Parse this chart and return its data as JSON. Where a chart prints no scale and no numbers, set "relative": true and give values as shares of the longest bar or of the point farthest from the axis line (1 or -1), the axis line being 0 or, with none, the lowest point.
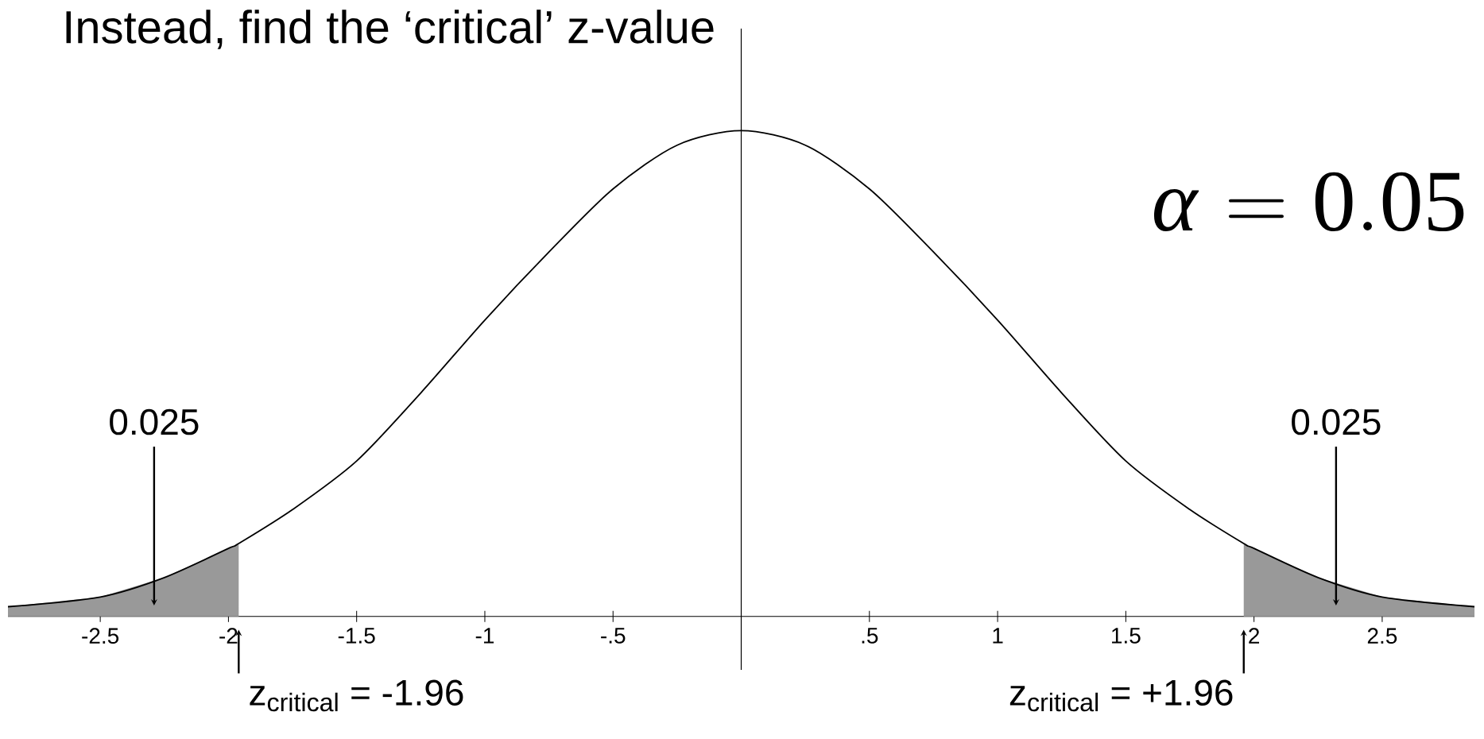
{
  "chart_data": {
    "type": "line",
    "title": "Instead, find the ‘critical’ z-value",
    "relative": true,
    "xlim": [
      -2.86,
      2.86
    ],
    "xticks": [
      {
        "value": -2.5,
        "label": "-2.5"
      },
      {
        "value": -2,
        "label": "-2"
      },
      {
        "value": -1.5,
        "label": "-1.5"
      },
      {
        "value": -1,
        "label": "-1"
      },
      {
        "value": -0.5,
        "label": "-.5"
      },
      {
        "value": 0.5,
        "label": ".5"
      },
      {
        "value": 1,
        "label": "1"
      },
      {
        "value": 1.5,
        "label": "1.5"
      },
      {
        "value": 2,
        "label": "2"
      },
      {
        "value": 2.5,
        "label": "2.5"
      }
    ],
    "series": [
      {
        "type": "area",
        "color": "#999999",
        "x": [
          -2.86,
          -2.5,
          -2.25,
          -2,
          -1.96
        ],
        "values": [
          0.02,
          0.04,
          0.08,
          0.14,
          0.15
        ]
      },
      {
        "type": "area",
        "color": "#999999",
        "x": [
          1.96,
          2,
          2.25,
          2.5,
          2.86
        ],
        "values": [
          0.15,
          0.14,
          0.08,
          0.04,
          0.02
        ]
      },
      {
        "color": "#000000",
        "x": [
          -2.86,
          -2.5,
          -2.25,
          -2,
          -1.96,
          -1.75,
          -1.5,
          -1.25,
          -1,
          -0.75,
          -0.5,
          -0.25,
          0,
          0.25,
          0.5,
          0.75,
          1,
          1.25,
          1.5,
          1.75,
          1.96,
          2,
          2.25,
          2.5,
          2.86
        ],
        "values": [
          0.02,
          0.04,
          0.08,
          0.14,
          0.15,
          0.22,
          0.32,
          0.46,
          0.61,
          0.75,
          0.88,
          0.97,
          1,
          0.97,
          0.88,
          0.75,
          0.61,
          0.46,
          0.32,
          0.22,
          0.15,
          0.14,
          0.08,
          0.04,
          0.02
        ]
      }
    ],
    "annotations": [
      "0.025",
      "0.025",
      {
        "text": "z$_{critical}$ = -1.96",
        "x": -1.96,
        "y": 0
      },
      {
        "text": "z$_{critical}$ = +1.96",
        "x": 1.96,
        "y": 0
      },
      "\\alpha=0.05"
    ]
  }
}
